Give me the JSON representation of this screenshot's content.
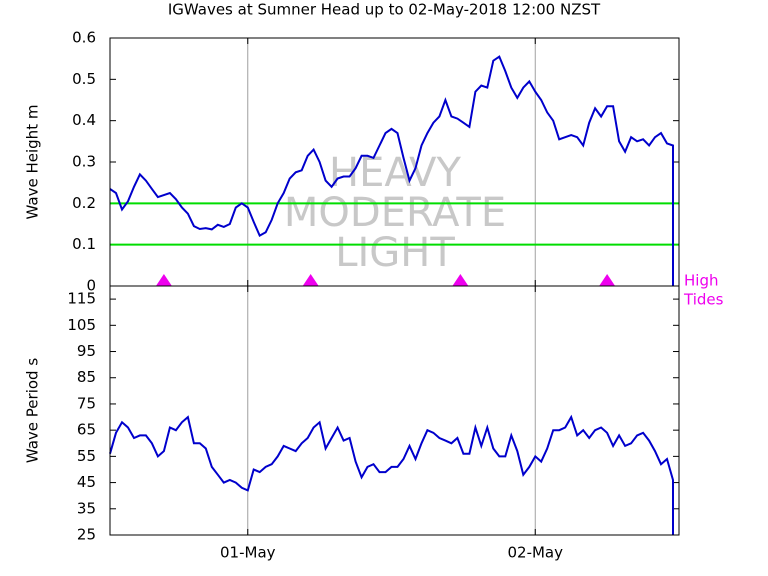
{
  "chart_data": [
    {
      "type": "line",
      "title": "IGWaves at Sumner Head up to 02-May-2018 12:00 NZST",
      "ylabel": "Wave Height m",
      "xlim": [
        -11.5,
        36
      ],
      "ylim": [
        0,
        0.6
      ],
      "yticks": [
        0,
        0.1,
        0.2,
        0.3,
        0.4,
        0.5,
        0.6
      ],
      "watermark": [
        "HEAVY",
        "MODERATE",
        "LIGHT"
      ],
      "hlines": [
        0.2,
        0.1
      ],
      "hline_color": "#00dd00",
      "tide_markers": {
        "x": [
          -7,
          5.25,
          17.75,
          30
        ],
        "color": "#ee00ee",
        "label": [
          "High",
          "Tides"
        ]
      },
      "x": [
        -11.5,
        -11,
        -10.5,
        -10,
        -9.5,
        -9,
        -8.5,
        -8,
        -7.5,
        -7,
        -6.5,
        -6,
        -5.5,
        -5,
        -4.5,
        -4,
        -3.5,
        -3,
        -2.5,
        -2,
        -1.5,
        -1,
        -0.5,
        0,
        0.5,
        1,
        1.5,
        2,
        2.5,
        3,
        3.5,
        4,
        4.5,
        5,
        5.5,
        6,
        6.5,
        7,
        7.5,
        8,
        8.5,
        9,
        9.5,
        10,
        10.5,
        11,
        11.5,
        12,
        12.5,
        13,
        13.5,
        14,
        14.5,
        15,
        15.5,
        16,
        16.5,
        17,
        17.5,
        18,
        18.5,
        19,
        19.5,
        20,
        20.5,
        21,
        21.5,
        22,
        22.5,
        23,
        23.5,
        24,
        24.5,
        25,
        25.5,
        26,
        26.5,
        27,
        27.5,
        28,
        28.5,
        29,
        29.5,
        30,
        30.5,
        31,
        31.5,
        32,
        32.5,
        33,
        33.5,
        34,
        34.5,
        35,
        35.5,
        35.5
      ],
      "series": [
        {
          "color": "#0000cc",
          "values": [
            0.235,
            0.225,
            0.185,
            0.205,
            0.24,
            0.27,
            0.255,
            0.235,
            0.215,
            0.22,
            0.225,
            0.21,
            0.19,
            0.175,
            0.145,
            0.138,
            0.14,
            0.137,
            0.148,
            0.143,
            0.15,
            0.19,
            0.2,
            0.19,
            0.155,
            0.122,
            0.13,
            0.16,
            0.2,
            0.225,
            0.26,
            0.275,
            0.28,
            0.315,
            0.33,
            0.3,
            0.255,
            0.24,
            0.26,
            0.265,
            0.265,
            0.285,
            0.315,
            0.315,
            0.31,
            0.34,
            0.37,
            0.38,
            0.37,
            0.31,
            0.255,
            0.285,
            0.34,
            0.37,
            0.395,
            0.41,
            0.45,
            0.41,
            0.405,
            0.395,
            0.385,
            0.47,
            0.485,
            0.48,
            0.545,
            0.555,
            0.52,
            0.48,
            0.455,
            0.48,
            0.495,
            0.47,
            0.45,
            0.42,
            0.4,
            0.355,
            0.36,
            0.365,
            0.36,
            0.34,
            0.395,
            0.43,
            0.41,
            0.435,
            0.435,
            0.35,
            0.325,
            0.36,
            0.35,
            0.355,
            0.34,
            0.36,
            0.37,
            0.345,
            0.34,
            0
          ]
        }
      ]
    },
    {
      "type": "line",
      "ylabel": "Wave Period s",
      "xlim": [
        -11.5,
        36
      ],
      "xticks": [
        {
          "value": 0,
          "label": "01-May"
        },
        {
          "value": 24,
          "label": "02-May"
        }
      ],
      "ylim": [
        25,
        120
      ],
      "yticks": [
        25,
        35,
        45,
        55,
        65,
        75,
        85,
        95,
        105,
        115
      ],
      "x": [
        -11.5,
        -11,
        -10.5,
        -10,
        -9.5,
        -9,
        -8.5,
        -8,
        -7.5,
        -7,
        -6.5,
        -6,
        -5.5,
        -5,
        -4.5,
        -4,
        -3.5,
        -3,
        -2.5,
        -2,
        -1.5,
        -1,
        -0.5,
        0,
        0.5,
        1,
        1.5,
        2,
        2.5,
        3,
        3.5,
        4,
        4.5,
        5,
        5.5,
        6,
        6.5,
        7,
        7.5,
        8,
        8.5,
        9,
        9.5,
        10,
        10.5,
        11,
        11.5,
        12,
        12.5,
        13,
        13.5,
        14,
        14.5,
        15,
        15.5,
        16,
        16.5,
        17,
        17.5,
        18,
        18.5,
        19,
        19.5,
        20,
        20.5,
        21,
        21.5,
        22,
        22.5,
        23,
        23.5,
        24,
        24.5,
        25,
        25.5,
        26,
        26.5,
        27,
        27.5,
        28,
        28.5,
        29,
        29.5,
        30,
        30.5,
        31,
        31.5,
        32,
        32.5,
        33,
        33.5,
        34,
        34.5,
        35,
        35.5,
        35.5
      ],
      "series": [
        {
          "color": "#0000cc",
          "values": [
            56,
            64,
            68,
            66,
            62,
            63,
            63,
            60,
            55,
            57,
            66,
            65,
            68,
            70,
            60,
            60,
            58,
            51,
            48,
            45,
            46,
            45,
            43,
            42,
            50,
            49,
            51,
            52,
            55,
            59,
            58,
            57,
            60,
            62,
            66,
            68,
            58,
            62,
            66,
            61,
            62,
            53,
            47,
            51,
            52,
            49,
            49,
            51,
            51,
            54,
            59,
            54,
            60,
            65,
            64,
            62,
            61,
            60,
            62,
            56,
            56,
            66,
            59,
            66,
            58,
            55,
            55,
            63,
            57,
            48,
            51,
            55,
            53,
            58,
            65,
            65,
            66,
            70,
            63,
            65,
            62,
            65,
            66,
            64,
            59,
            63,
            59,
            60,
            63,
            64,
            61,
            57,
            52,
            54,
            46,
            25
          ]
        }
      ]
    }
  ]
}
